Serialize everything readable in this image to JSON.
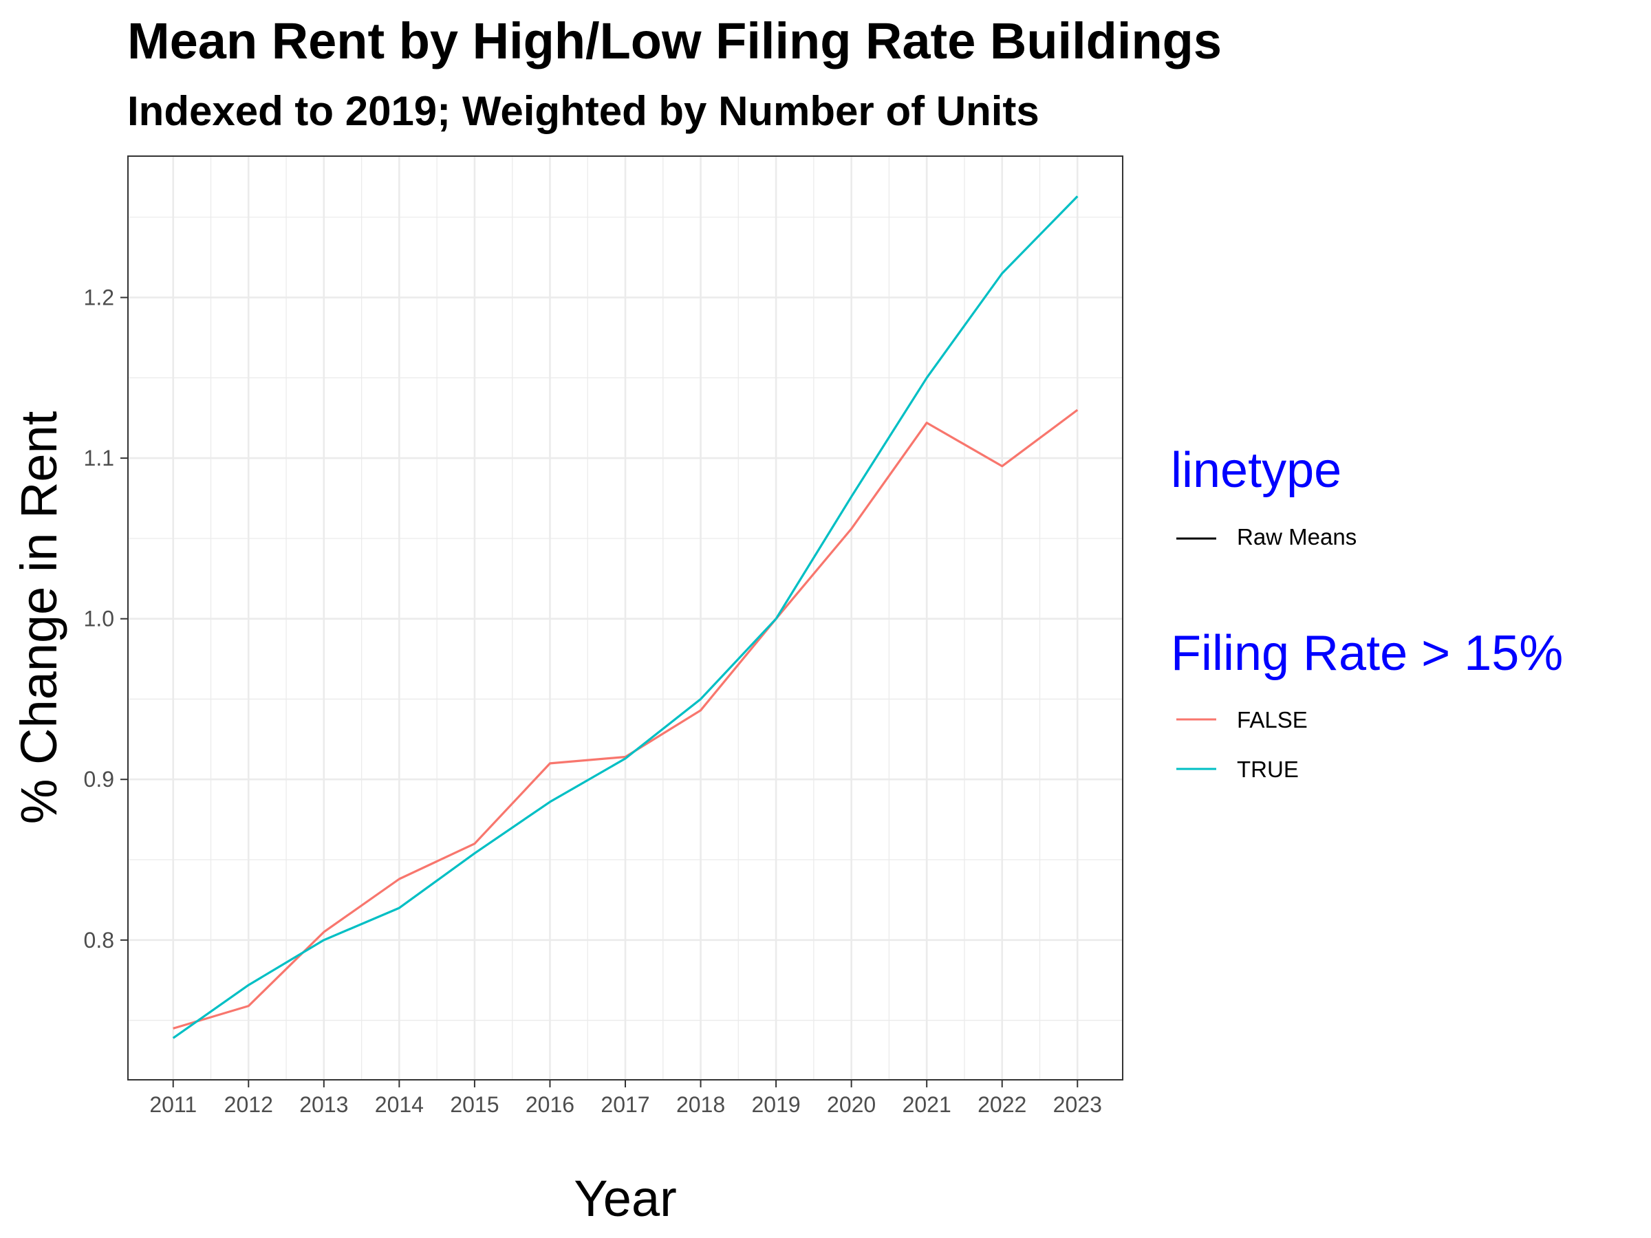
{
  "chart_data": {
    "type": "line",
    "title": "Mean Rent by High/Low Filing Rate Buildings",
    "subtitle": "Indexed to 2019; Weighted by Number of Units",
    "xlabel": "Year",
    "ylabel": "% Change in Rent",
    "x": [
      2011,
      2012,
      2013,
      2014,
      2015,
      2016,
      2017,
      2018,
      2019,
      2020,
      2021,
      2022,
      2023
    ],
    "x_ticks": [
      "2011",
      "2012",
      "2013",
      "2014",
      "2015",
      "2016",
      "2017",
      "2018",
      "2019",
      "2020",
      "2021",
      "2022",
      "2023"
    ],
    "y_ticks": [
      "0.8",
      "0.9",
      "1.0",
      "1.1",
      "1.2"
    ],
    "y_tick_values": [
      0.8,
      0.9,
      1.0,
      1.1,
      1.2
    ],
    "ylim": [
      0.713,
      1.288
    ],
    "xlim": [
      2010.4,
      2023.6
    ],
    "grid": true,
    "series": [
      {
        "name": "FALSE",
        "color": "#F8766D",
        "values": [
          0.745,
          0.759,
          0.805,
          0.838,
          0.86,
          0.91,
          0.914,
          0.943,
          1.0,
          1.056,
          1.122,
          1.095,
          1.13
        ]
      },
      {
        "name": "TRUE",
        "color": "#00BFC4",
        "values": [
          0.739,
          0.772,
          0.8,
          0.82,
          0.854,
          0.886,
          0.913,
          0.95,
          1.0,
          1.076,
          1.15,
          1.215,
          1.263
        ]
      }
    ],
    "legend": {
      "placement": "right",
      "linetype_title": "linetype",
      "linetype_items": [
        {
          "label": "Raw Means",
          "color": "#000000"
        }
      ],
      "color_title": "Filing Rate > 15%",
      "title_color": "#0000FF"
    }
  }
}
